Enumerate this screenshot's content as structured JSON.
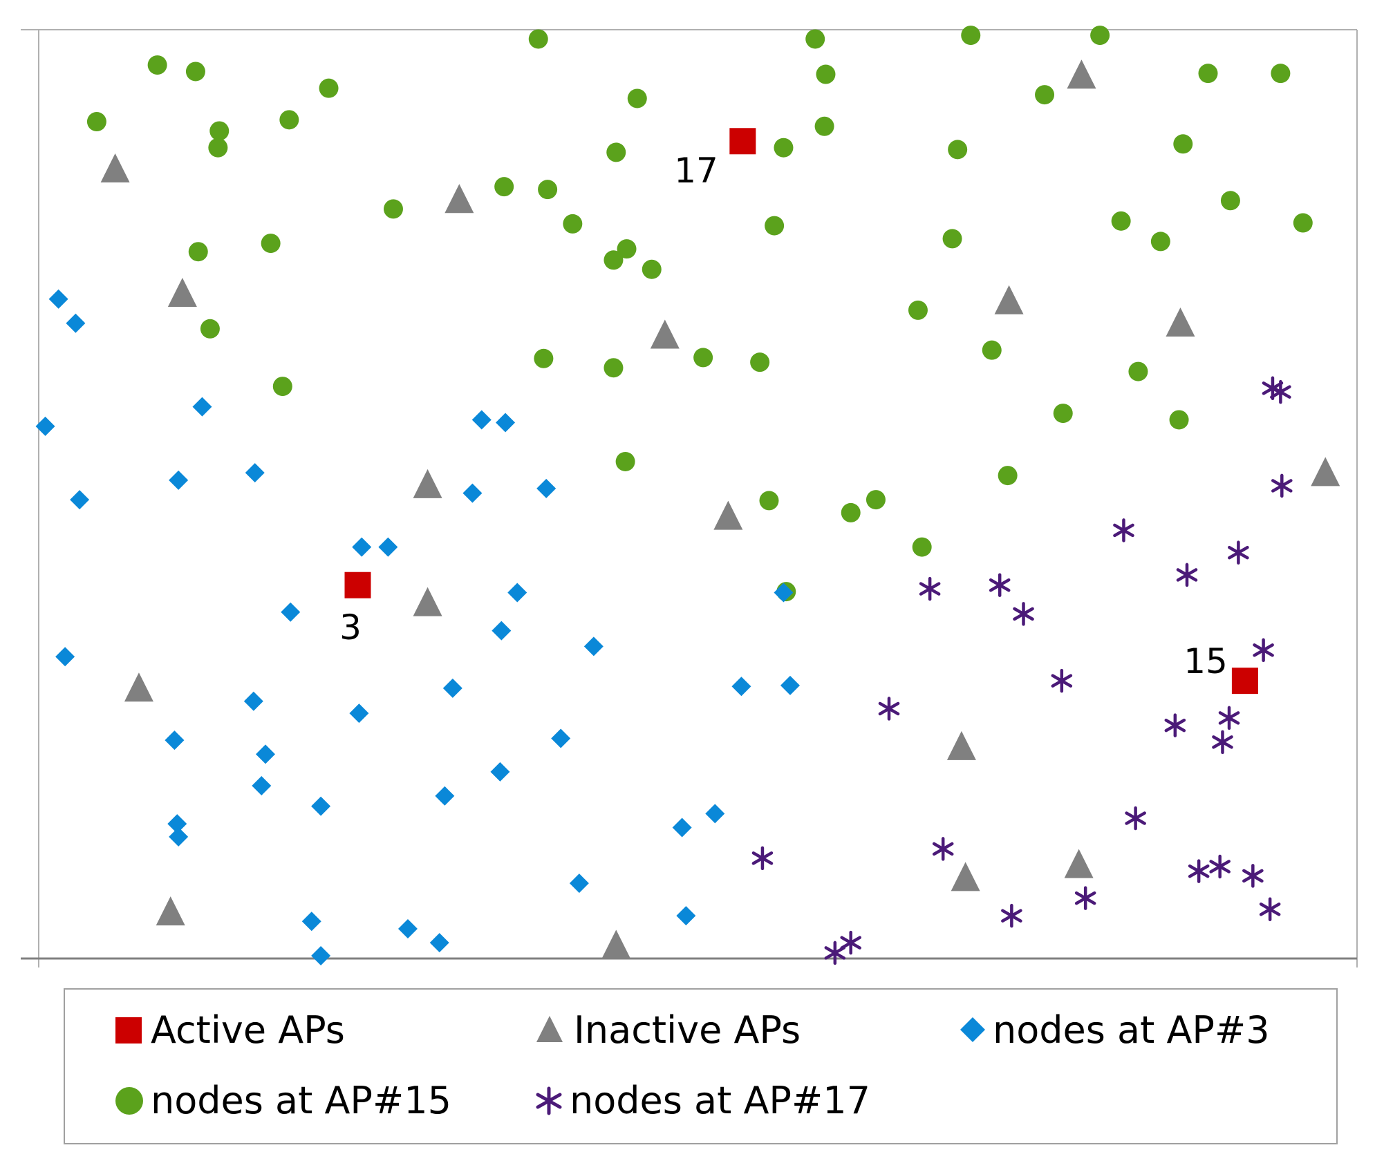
{
  "chart_data": {
    "type": "scatter",
    "title": "",
    "xlabel": "",
    "ylabel": "",
    "xlim": [
      0,
      100
    ],
    "ylim": [
      0,
      100
    ],
    "grid": false,
    "legend_position": "bottom",
    "colors": {
      "active": "#CC0000",
      "inactive": "#808080",
      "ap3": "#0A88D8",
      "ap15": "#5BA21C",
      "ap17": "#4B1A78"
    },
    "ap_labels": [
      {
        "text": "3",
        "x": 24.2,
        "y": 40.2
      },
      {
        "text": "17",
        "x": 53.4,
        "y": 87.9
      },
      {
        "text": "15",
        "x": 91.5,
        "y": 29.9
      }
    ],
    "series": [
      {
        "key": "active",
        "name": "Active APs",
        "marker": "square",
        "points": [
          [
            24.2,
            40.2
          ],
          [
            53.4,
            88.0
          ],
          [
            91.5,
            29.9
          ]
        ]
      },
      {
        "key": "inactive",
        "name": "Inactive APs",
        "marker": "triangle",
        "points": [
          [
            5.8,
            84.9
          ],
          [
            31.9,
            81.6
          ],
          [
            10.9,
            71.5
          ],
          [
            47.5,
            67.0
          ],
          [
            79.1,
            95.0
          ],
          [
            73.6,
            70.7
          ],
          [
            86.6,
            68.3
          ],
          [
            97.6,
            52.2
          ],
          [
            29.5,
            50.9
          ],
          [
            52.3,
            47.5
          ],
          [
            29.5,
            38.2
          ],
          [
            7.6,
            29.0
          ],
          [
            70.0,
            22.7
          ],
          [
            10.0,
            4.9
          ],
          [
            43.8,
            1.3
          ],
          [
            70.3,
            8.6
          ],
          [
            78.9,
            10.0
          ]
        ]
      },
      {
        "key": "ap3",
        "name": "nodes at AP#3",
        "marker": "diamond",
        "points": [
          [
            1.5,
            71.0
          ],
          [
            2.8,
            68.4
          ],
          [
            12.4,
            59.4
          ],
          [
            0.5,
            57.3
          ],
          [
            10.6,
            51.5
          ],
          [
            16.4,
            52.3
          ],
          [
            3.1,
            49.4
          ],
          [
            33.6,
            58.0
          ],
          [
            35.4,
            57.7
          ],
          [
            32.9,
            50.1
          ],
          [
            38.5,
            50.6
          ],
          [
            24.5,
            44.3
          ],
          [
            26.5,
            44.3
          ],
          [
            19.1,
            37.3
          ],
          [
            36.3,
            39.4
          ],
          [
            35.1,
            35.3
          ],
          [
            42.1,
            33.6
          ],
          [
            56.5,
            39.4
          ],
          [
            2.0,
            32.5
          ],
          [
            16.3,
            27.7
          ],
          [
            24.3,
            26.4
          ],
          [
            31.4,
            29.1
          ],
          [
            53.3,
            29.3
          ],
          [
            57.0,
            29.4
          ],
          [
            10.3,
            23.5
          ],
          [
            17.2,
            22.0
          ],
          [
            39.6,
            23.7
          ],
          [
            16.9,
            18.6
          ],
          [
            35.0,
            20.1
          ],
          [
            21.4,
            16.4
          ],
          [
            30.8,
            17.5
          ],
          [
            10.5,
            14.5
          ],
          [
            10.6,
            13.1
          ],
          [
            48.8,
            14.1
          ],
          [
            51.3,
            15.6
          ],
          [
            41.0,
            8.1
          ],
          [
            20.7,
            4.0
          ],
          [
            28.0,
            3.2
          ],
          [
            30.4,
            1.7
          ],
          [
            49.1,
            4.6
          ],
          [
            21.4,
            0.3
          ]
        ]
      },
      {
        "key": "ap15",
        "name": "nodes at AP#15",
        "marker": "circle",
        "points": [
          [
            9.0,
            96.2
          ],
          [
            11.9,
            95.5
          ],
          [
            4.4,
            90.1
          ],
          [
            13.7,
            89.1
          ],
          [
            22.0,
            93.7
          ],
          [
            37.9,
            99.0
          ],
          [
            58.9,
            99.0
          ],
          [
            70.7,
            99.4
          ],
          [
            80.5,
            99.4
          ],
          [
            59.7,
            95.2
          ],
          [
            45.4,
            92.6
          ],
          [
            19.0,
            90.3
          ],
          [
            13.6,
            87.3
          ],
          [
            43.8,
            86.8
          ],
          [
            56.5,
            87.3
          ],
          [
            59.6,
            89.6
          ],
          [
            69.7,
            87.1
          ],
          [
            76.3,
            93.0
          ],
          [
            88.7,
            95.3
          ],
          [
            94.2,
            95.3
          ],
          [
            86.8,
            87.7
          ],
          [
            90.4,
            81.6
          ],
          [
            26.9,
            80.7
          ],
          [
            35.3,
            83.1
          ],
          [
            38.6,
            82.8
          ],
          [
            40.5,
            79.1
          ],
          [
            44.6,
            76.4
          ],
          [
            43.6,
            75.2
          ],
          [
            46.5,
            74.2
          ],
          [
            55.8,
            78.9
          ],
          [
            69.3,
            77.5
          ],
          [
            82.1,
            79.4
          ],
          [
            85.1,
            77.2
          ],
          [
            95.9,
            79.2
          ],
          [
            12.1,
            76.1
          ],
          [
            17.6,
            77.0
          ],
          [
            13.0,
            67.8
          ],
          [
            18.5,
            61.6
          ],
          [
            38.3,
            64.6
          ],
          [
            43.6,
            63.6
          ],
          [
            50.4,
            64.7
          ],
          [
            54.7,
            64.2
          ],
          [
            66.7,
            69.8
          ],
          [
            72.3,
            65.5
          ],
          [
            83.4,
            63.2
          ],
          [
            77.7,
            58.7
          ],
          [
            86.5,
            58.0
          ],
          [
            44.5,
            53.5
          ],
          [
            73.5,
            52.0
          ],
          [
            55.4,
            49.3
          ],
          [
            61.6,
            48.0
          ],
          [
            63.5,
            49.4
          ],
          [
            67.0,
            44.3
          ],
          [
            56.7,
            39.5
          ]
        ]
      },
      {
        "key": "ap17",
        "name": "nodes at AP#17",
        "marker": "asterisk",
        "points": [
          [
            93.6,
            61.4
          ],
          [
            94.2,
            61.0
          ],
          [
            94.3,
            50.9
          ],
          [
            82.3,
            46.1
          ],
          [
            91.0,
            43.7
          ],
          [
            87.1,
            41.3
          ],
          [
            67.6,
            39.8
          ],
          [
            72.9,
            40.2
          ],
          [
            74.7,
            37.1
          ],
          [
            92.9,
            33.2
          ],
          [
            77.6,
            29.9
          ],
          [
            64.5,
            26.9
          ],
          [
            86.2,
            25.1
          ],
          [
            90.3,
            25.9
          ],
          [
            89.8,
            23.3
          ],
          [
            83.2,
            15.1
          ],
          [
            54.9,
            10.8
          ],
          [
            68.6,
            11.8
          ],
          [
            88.0,
            9.4
          ],
          [
            89.6,
            9.9
          ],
          [
            92.1,
            8.9
          ],
          [
            79.4,
            6.5
          ],
          [
            73.8,
            4.6
          ],
          [
            93.4,
            5.3
          ],
          [
            61.6,
            1.7
          ],
          [
            60.4,
            0.6
          ]
        ]
      }
    ]
  }
}
